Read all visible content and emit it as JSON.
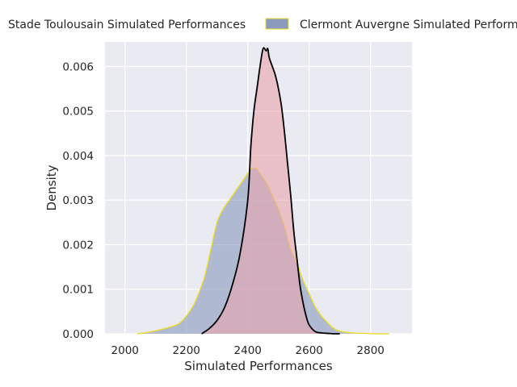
{
  "chart_data": {
    "type": "area",
    "xlabel": "Simulated Performances",
    "ylabel": "Density",
    "xlim": [
      1935,
      2935
    ],
    "ylim": [
      0,
      0.00655
    ],
    "xticks": [
      2000,
      2200,
      2400,
      2600,
      2800
    ],
    "yticks": [
      0.0,
      0.001,
      0.002,
      0.003,
      0.004,
      0.005,
      0.006
    ],
    "ytick_labels": [
      "0.000",
      "0.001",
      "0.002",
      "0.003",
      "0.004",
      "0.005",
      "0.006"
    ],
    "grid": true,
    "legend": {
      "placement": "top",
      "entries": [
        "Stade Toulousain Simulated Performances",
        "Clermont Auvergne Simulated Performances"
      ]
    },
    "series": [
      {
        "name": "Stade Toulousain Simulated Performances",
        "fill": "#e8a6ae",
        "edge": "#000000",
        "x": [
          2250,
          2275,
          2300,
          2325,
          2350,
          2375,
          2400,
          2410,
          2420,
          2430,
          2440,
          2450,
          2460,
          2465,
          2470,
          2480,
          2490,
          2500,
          2510,
          2520,
          2530,
          2540,
          2550,
          2560,
          2570,
          2580,
          2590,
          2600,
          2620,
          2640,
          2660,
          2680,
          2700
        ],
        "y": [
          0.0,
          0.00012,
          0.0003,
          0.0006,
          0.0011,
          0.0018,
          0.003,
          0.0042,
          0.005,
          0.0055,
          0.006,
          0.0064,
          0.00635,
          0.0064,
          0.0062,
          0.006,
          0.0058,
          0.0055,
          0.0051,
          0.0045,
          0.0038,
          0.0031,
          0.0023,
          0.0017,
          0.0011,
          0.0007,
          0.0004,
          0.0002,
          5e-05,
          2e-05,
          1e-05,
          0.0,
          0.0
        ]
      },
      {
        "name": "Clermont Auvergne Simulated Performances",
        "fill": "#8a9bbd",
        "edge": "#ecde2a",
        "x": [
          2040,
          2080,
          2120,
          2160,
          2180,
          2200,
          2220,
          2240,
          2260,
          2280,
          2300,
          2320,
          2340,
          2360,
          2380,
          2400,
          2410,
          2420,
          2430,
          2440,
          2460,
          2480,
          2500,
          2520,
          2540,
          2560,
          2580,
          2600,
          2620,
          2640,
          2660,
          2680,
          2700,
          2740,
          2780,
          2820,
          2860
        ],
        "y": [
          0.0,
          4e-05,
          0.0001,
          0.00018,
          0.00025,
          0.0004,
          0.0006,
          0.0009,
          0.0013,
          0.0019,
          0.0025,
          0.0028,
          0.003,
          0.0032,
          0.0034,
          0.0036,
          0.0037,
          0.00372,
          0.0037,
          0.0036,
          0.0034,
          0.0031,
          0.0028,
          0.0024,
          0.0019,
          0.0016,
          0.0012,
          0.0009,
          0.0006,
          0.0004,
          0.00025,
          0.00012,
          6e-05,
          2e-05,
          1e-05,
          0.0,
          0.0
        ]
      }
    ]
  }
}
